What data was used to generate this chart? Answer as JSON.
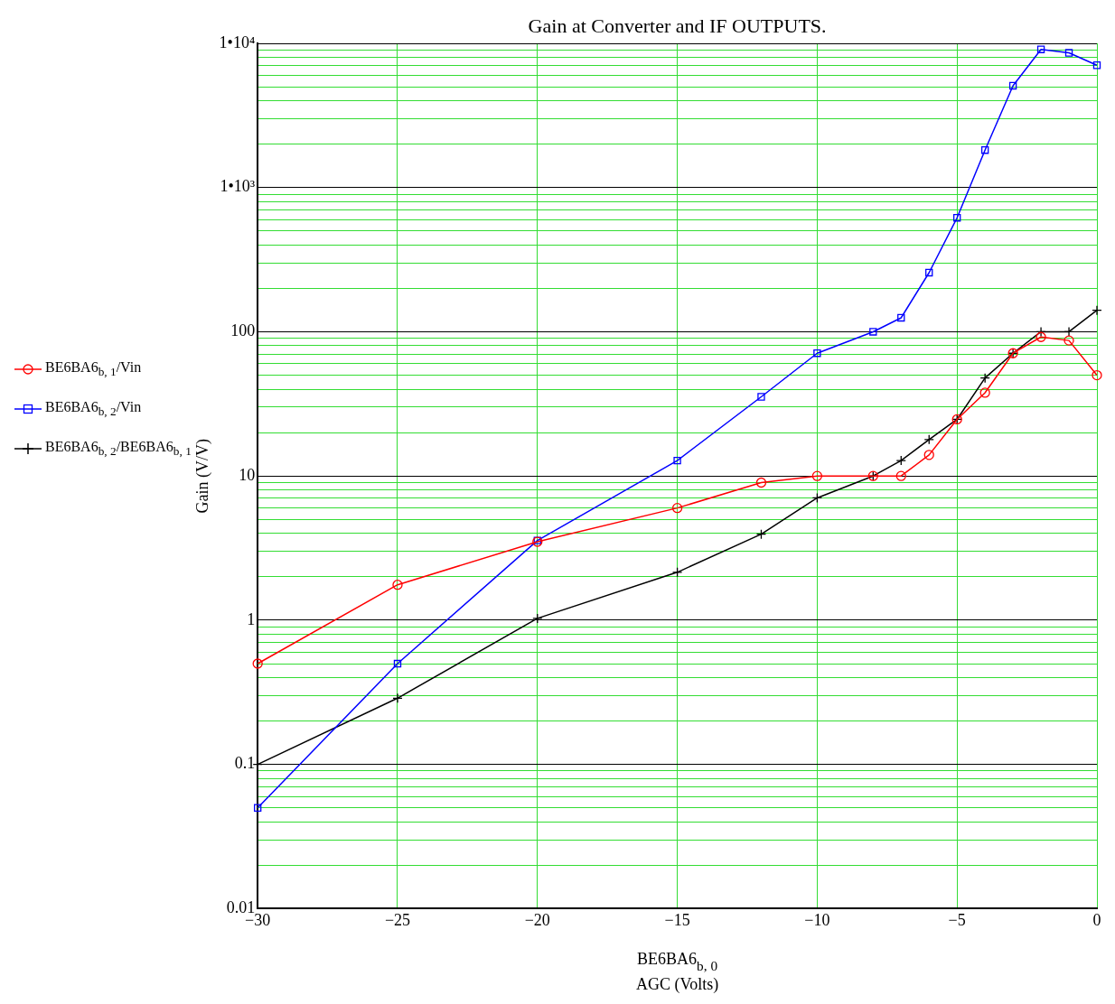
{
  "chart_data": {
    "type": "line",
    "title": "Gain at Converter and IF OUTPUTS.",
    "xlabel": "BE6BA6$_{b, 0}$\nAGC (Volts)",
    "ylabel": "Gain (V/V)",
    "log": "y",
    "grid": true,
    "legend": "left",
    "line_style": "solid",
    "x": [
      -30,
      -25,
      -20,
      -15,
      -12,
      -10,
      -8,
      -7,
      -6,
      -5,
      -4,
      -3,
      -2,
      -1,
      0
    ],
    "xlim": [
      -30,
      0
    ],
    "xticks": [
      -30,
      -25,
      -20,
      -15,
      -10,
      -5,
      0
    ],
    "ylim": [
      0.01,
      10000
    ],
    "yticks": [
      {
        "value": 0.01,
        "label": "0.01"
      },
      {
        "value": 0.02,
        "label": null
      },
      {
        "value": 0.03,
        "label": null
      },
      {
        "value": 0.04,
        "label": null
      },
      {
        "value": 0.05,
        "label": null
      },
      {
        "value": 0.06,
        "label": null
      },
      {
        "value": 0.07,
        "label": null
      },
      {
        "value": 0.08,
        "label": null
      },
      {
        "value": 0.09,
        "label": null
      },
      {
        "value": 0.1,
        "label": "0.1"
      },
      {
        "value": 0.2,
        "label": null
      },
      {
        "value": 0.3,
        "label": null
      },
      {
        "value": 0.4,
        "label": null
      },
      {
        "value": 0.5,
        "label": null
      },
      {
        "value": 0.6,
        "label": null
      },
      {
        "value": 0.7,
        "label": null
      },
      {
        "value": 0.8,
        "label": null
      },
      {
        "value": 0.9,
        "label": null
      },
      1,
      {
        "value": 2,
        "label": null
      },
      {
        "value": 3,
        "label": null
      },
      {
        "value": 4,
        "label": null
      },
      {
        "value": 5,
        "label": null
      },
      {
        "value": 6,
        "label": null
      },
      {
        "value": 7,
        "label": null
      },
      {
        "value": 8,
        "label": null
      },
      {
        "value": 9,
        "label": null
      },
      10,
      {
        "value": 20,
        "label": null
      },
      {
        "value": 30,
        "label": null
      },
      {
        "value": 40,
        "label": null
      },
      {
        "value": 50,
        "label": null
      },
      {
        "value": 60,
        "label": null
      },
      {
        "value": 70,
        "label": null
      },
      {
        "value": 80,
        "label": null
      },
      {
        "value": 90,
        "label": null
      },
      100,
      {
        "value": 200,
        "label": null
      },
      {
        "value": 300,
        "label": null
      },
      {
        "value": 400,
        "label": null
      },
      {
        "value": 500,
        "label": null
      },
      {
        "value": 600,
        "label": null
      },
      {
        "value": 700,
        "label": null
      },
      {
        "value": 800,
        "label": null
      },
      {
        "value": 900,
        "label": null
      },
      {
        "value": 1000,
        "label": "1•10³"
      },
      {
        "value": 2000,
        "label": null
      },
      {
        "value": 3000,
        "label": null
      },
      {
        "value": 4000,
        "label": null
      },
      {
        "value": 5000,
        "label": null
      },
      {
        "value": 6000,
        "label": null
      },
      {
        "value": 7000,
        "label": null
      },
      {
        "value": 8000,
        "label": null
      },
      {
        "value": 9000,
        "label": null
      },
      {
        "value": 10000,
        "label": "1•10⁴"
      }
    ],
    "series": [
      {
        "name": "BE6BA6$_{b, 1}$/Vin",
        "color": "#ff0000",
        "marker": "circle",
        "values": [
          0.5,
          1.76,
          3.5,
          6.0,
          9.0,
          10,
          10,
          10,
          14,
          24.7,
          37.8,
          71,
          92,
          87,
          50
        ]
      },
      {
        "name": "BE6BA6$_{b, 2}$/Vin",
        "color": "#0000ff",
        "marker": "square",
        "values": [
          0.05,
          0.5,
          3.57,
          12.8,
          35.4,
          71,
          100,
          125,
          257,
          617,
          1820,
          5080,
          9080,
          8590,
          7050
        ]
      },
      {
        "name": "BE6BA6$_{b, 2}$/BE6BA6$_{b, 1}$",
        "color": "#000000",
        "marker": "cross",
        "values": [
          0.1,
          0.288,
          1.03,
          2.15,
          3.95,
          7.05,
          10,
          12.8,
          17.9,
          24.7,
          47.8,
          71,
          100,
          100,
          141
        ]
      }
    ]
  }
}
